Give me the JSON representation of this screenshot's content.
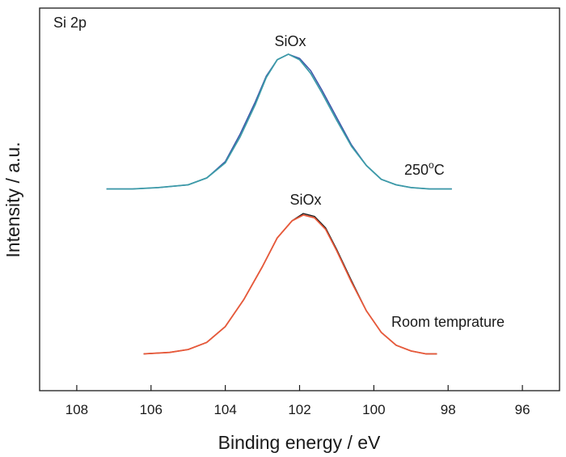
{
  "chart_data": {
    "type": "line",
    "panel_label": "Si 2p",
    "xlabel": "Binding energy / eV",
    "ylabel": "Intensity / a.u.",
    "xlim": [
      109,
      95
    ],
    "x_reversed": true,
    "x_ticks": [
      108,
      106,
      104,
      102,
      100,
      98,
      96
    ],
    "y_ticks_visible": false,
    "grid": false,
    "legend": "none",
    "series": [
      {
        "role": "upper-measured",
        "color": "#3a4fa8",
        "x": [
          107.2,
          106.5,
          105.8,
          105.0,
          104.5,
          104.0,
          103.6,
          103.2,
          102.9,
          102.6,
          102.3,
          102.0,
          101.7,
          101.4,
          101.0,
          100.6,
          100.2,
          99.8,
          99.4,
          99.0,
          98.5,
          97.9
        ],
        "y": [
          0.02,
          0.02,
          0.03,
          0.05,
          0.1,
          0.22,
          0.42,
          0.65,
          0.84,
          0.96,
          1.0,
          0.97,
          0.88,
          0.74,
          0.54,
          0.34,
          0.19,
          0.09,
          0.05,
          0.03,
          0.02,
          0.02
        ]
      },
      {
        "role": "upper-fit",
        "color": "#3c9aa8",
        "x": [
          107.2,
          106.5,
          105.8,
          105.0,
          104.5,
          104.0,
          103.6,
          103.2,
          102.9,
          102.6,
          102.3,
          102.0,
          101.7,
          101.4,
          101.0,
          100.6,
          100.2,
          99.8,
          99.4,
          99.0,
          98.5,
          97.9
        ],
        "y": [
          0.02,
          0.02,
          0.03,
          0.05,
          0.1,
          0.21,
          0.4,
          0.63,
          0.83,
          0.96,
          1.0,
          0.96,
          0.86,
          0.72,
          0.52,
          0.33,
          0.19,
          0.09,
          0.05,
          0.03,
          0.02,
          0.02
        ]
      },
      {
        "role": "lower-measured",
        "color": "#1a1a1a",
        "x": [
          106.2,
          105.5,
          105.0,
          104.5,
          104.0,
          103.5,
          103.0,
          102.6,
          102.2,
          101.9,
          101.6,
          101.3,
          101.0,
          100.6,
          100.2,
          99.8,
          99.4,
          99.0,
          98.6,
          98.3
        ],
        "y": [
          0.02,
          0.03,
          0.05,
          0.1,
          0.21,
          0.4,
          0.63,
          0.83,
          0.95,
          1.0,
          0.98,
          0.9,
          0.75,
          0.53,
          0.32,
          0.17,
          0.08,
          0.04,
          0.02,
          0.02
        ]
      },
      {
        "role": "lower-fit",
        "color": "#e8593a",
        "x": [
          106.2,
          105.5,
          105.0,
          104.5,
          104.0,
          103.5,
          103.0,
          102.6,
          102.2,
          101.9,
          101.6,
          101.3,
          101.0,
          100.6,
          100.2,
          99.8,
          99.4,
          99.0,
          98.6,
          98.3
        ],
        "y": [
          0.02,
          0.03,
          0.05,
          0.1,
          0.21,
          0.4,
          0.63,
          0.83,
          0.95,
          0.99,
          0.97,
          0.89,
          0.74,
          0.52,
          0.32,
          0.17,
          0.08,
          0.04,
          0.02,
          0.02
        ]
      }
    ],
    "annotations": [
      {
        "text": "SiOx",
        "x": 102.3,
        "curve": "upper"
      },
      {
        "text": "SiOx",
        "x": 101.9,
        "curve": "lower"
      }
    ],
    "curve_labels": {
      "upper": "250",
      "upper_sup": "o",
      "upper_unit": "C",
      "lower": "Room temprature"
    }
  }
}
